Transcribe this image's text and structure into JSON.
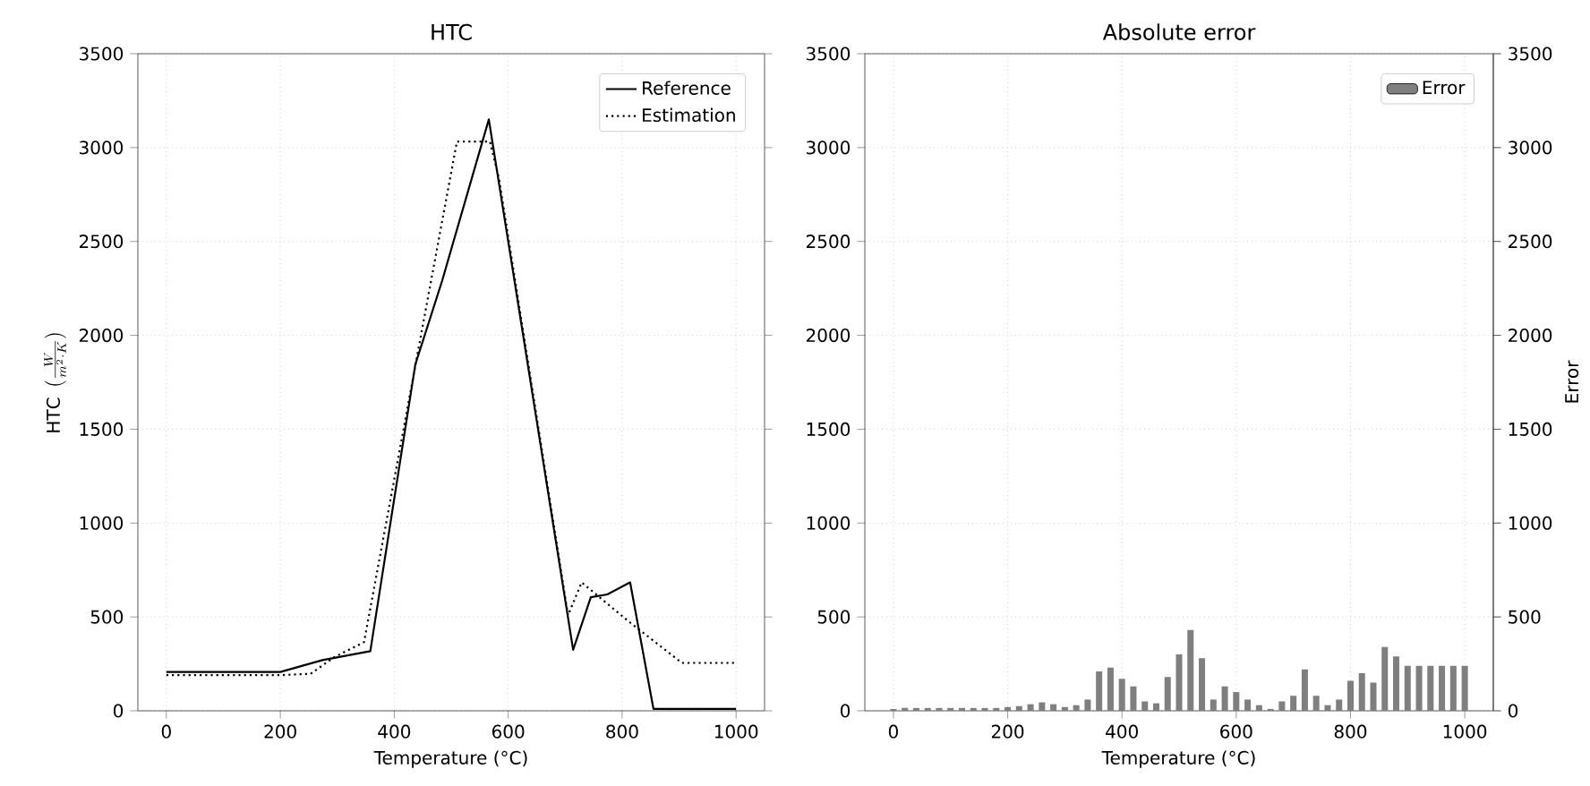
{
  "chart_data": [
    {
      "type": "line",
      "title": "HTC",
      "xlabel": "Temperature (°C)",
      "ylabel": "\\mathrm{HTC}\\ \\left(\\frac{W}{m^{2}\\cdot K}\\right)",
      "xlim": [
        -50,
        1050
      ],
      "ylim": [
        0,
        3500
      ],
      "xticks": [
        0,
        200,
        400,
        600,
        800,
        1000
      ],
      "yticks": [
        0,
        500,
        1000,
        1500,
        2000,
        2500,
        3000,
        3500
      ],
      "grid": true,
      "legend": "top right",
      "series": [
        {
          "name": "Reference",
          "color": "#000000",
          "line_style": "solid",
          "x": [
            0,
            200,
            274,
            358,
            437,
            484,
            566,
            714,
            745,
            774,
            814,
            855,
            1000
          ],
          "values": [
            207,
            207,
            270,
            318,
            1845,
            2290,
            3150,
            325,
            605,
            620,
            684,
            10,
            10
          ]
        },
        {
          "name": "Estimation",
          "color": "#000000",
          "line_style": "dotted",
          "x": [
            0,
            200,
            253,
            295,
            347,
            510,
            568,
            584,
            705,
            729,
            811,
            905,
            1000
          ],
          "values": [
            190,
            190,
            197,
            286,
            366,
            3032,
            3032,
            2832,
            509,
            684,
            477,
            255,
            255
          ]
        }
      ]
    },
    {
      "type": "bar",
      "title": "Absolute error",
      "xlabel": "Temperature (°C)",
      "y2label": "Error",
      "xlim": [
        -50,
        1050
      ],
      "ylim": [
        0,
        3500
      ],
      "y2lim": [
        0,
        3500
      ],
      "xticks": [
        0,
        200,
        400,
        600,
        800,
        1000
      ],
      "yticks": [
        0,
        500,
        1000,
        1500,
        2000,
        2500,
        3000,
        3500
      ],
      "y2ticks": [
        0,
        500,
        1000,
        1500,
        2000,
        2500,
        3000,
        3500
      ],
      "grid": true,
      "legend": "top right",
      "series": [
        {
          "name": "Error",
          "color": "#7f7f7f",
          "x": [
            0,
            20,
            40,
            60,
            80,
            100,
            120,
            140,
            160,
            180,
            200,
            220,
            240,
            260,
            280,
            300,
            320,
            340,
            360,
            380,
            400,
            420,
            440,
            460,
            480,
            500,
            520,
            540,
            560,
            580,
            600,
            620,
            640,
            660,
            680,
            700,
            720,
            740,
            760,
            780,
            800,
            820,
            840,
            860,
            880,
            900,
            920,
            940,
            960,
            980,
            1000
          ],
          "values": [
            10,
            15,
            15,
            15,
            15,
            15,
            15,
            15,
            15,
            15,
            20,
            25,
            35,
            45,
            35,
            20,
            30,
            60,
            210,
            230,
            170,
            130,
            50,
            40,
            180,
            300,
            430,
            280,
            60,
            130,
            100,
            60,
            30,
            10,
            50,
            80,
            220,
            80,
            30,
            60,
            160,
            200,
            150,
            340,
            290,
            240,
            240,
            240,
            240,
            240,
            240
          ]
        }
      ]
    }
  ]
}
